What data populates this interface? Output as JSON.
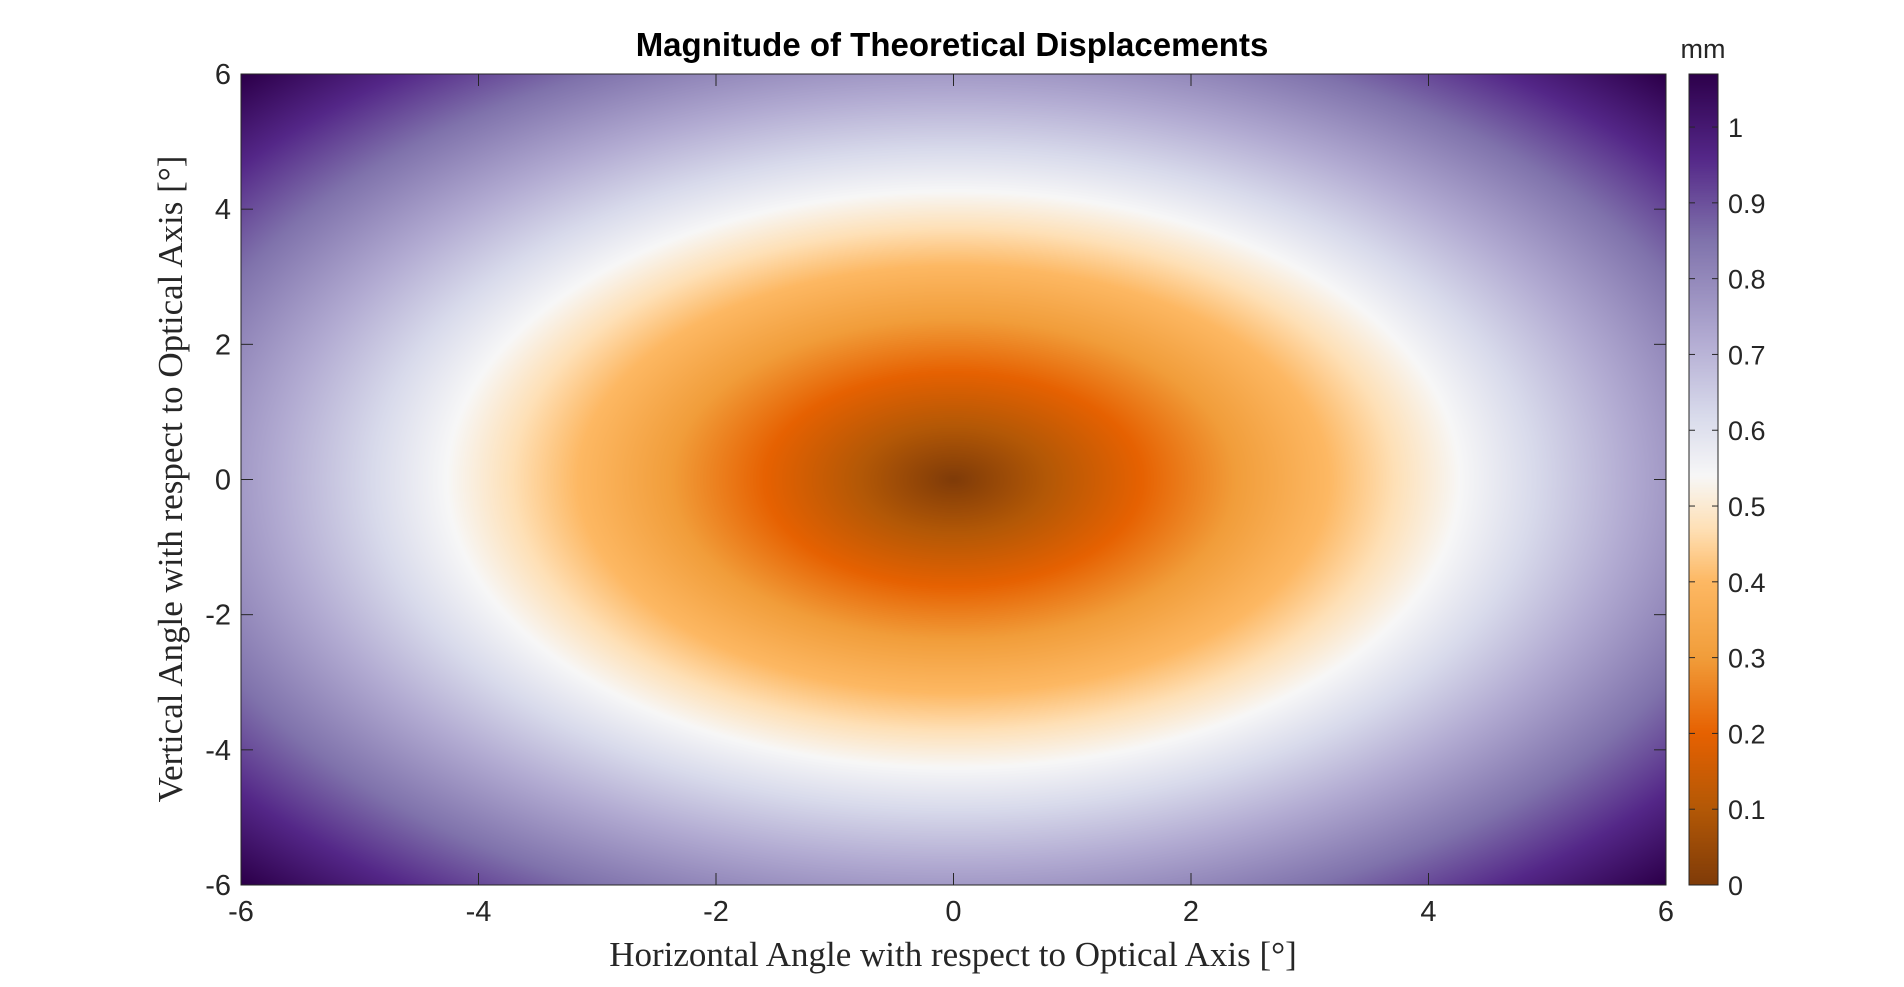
{
  "chart_data": {
    "type": "heatmap",
    "title": "Magnitude of Theoretical Displacements",
    "xlabel": "Horizontal Angle with respect to Optical Axis [°]",
    "ylabel": "Vertical Angle with respect to Optical Axis [°]",
    "xlim": [
      -6,
      6
    ],
    "ylim": [
      -6,
      6
    ],
    "xticks": [
      -6,
      -4,
      -2,
      0,
      2,
      4,
      6
    ],
    "yticks": [
      -6,
      -4,
      -2,
      0,
      2,
      4,
      6
    ],
    "xtick_labels": [
      "-6",
      "-4",
      "-2",
      "0",
      "2",
      "4",
      "6"
    ],
    "ytick_labels": [
      "-6",
      "-4",
      "-2",
      "0",
      "2",
      "4",
      "6"
    ],
    "field": {
      "description_of_values": "displacement magnitude in mm, minimum 0 at (0,0), increasing outward",
      "center": [
        0,
        0
      ],
      "value_at_center": 0,
      "value_at_x_edge_center": 0.76,
      "value_at_y_edge_center": 0.76,
      "value_at_corner": 1.07,
      "contour_0_5_semi_axis_x": 4.3,
      "contour_0_5_semi_axis_y": 4.2
    },
    "colorbar": {
      "unit": "mm",
      "range": [
        0,
        1.07
      ],
      "ticks": [
        0,
        0.1,
        0.2,
        0.3,
        0.4,
        0.5,
        0.6,
        0.7,
        0.8,
        0.9,
        1
      ],
      "tick_labels": [
        "0",
        "0.1",
        "0.2",
        "0.3",
        "0.4",
        "0.5",
        "0.6",
        "0.7",
        "0.8",
        "0.9",
        "1"
      ],
      "colormap_stops": [
        {
          "value": 0.0,
          "color": "#7f3b08"
        },
        {
          "value": 0.1,
          "color": "#b35806"
        },
        {
          "value": 0.2,
          "color": "#e66101"
        },
        {
          "value": 0.3,
          "color": "#f19d3a"
        },
        {
          "value": 0.4,
          "color": "#fdb863"
        },
        {
          "value": 0.47,
          "color": "#fee0b6"
        },
        {
          "value": 0.54,
          "color": "#f7f7f7"
        },
        {
          "value": 0.62,
          "color": "#d8daeb"
        },
        {
          "value": 0.72,
          "color": "#b2abd2"
        },
        {
          "value": 0.85,
          "color": "#8073ac"
        },
        {
          "value": 0.96,
          "color": "#542788"
        },
        {
          "value": 1.07,
          "color": "#2d004b"
        }
      ]
    }
  }
}
